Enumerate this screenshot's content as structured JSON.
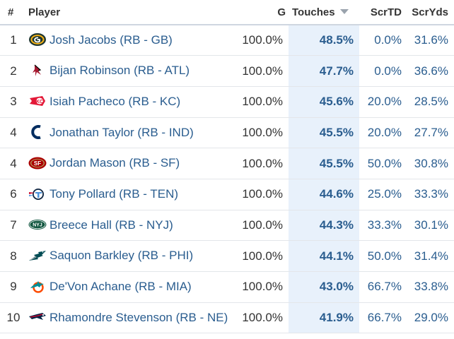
{
  "columns": {
    "rank": "#",
    "player": "Player",
    "g": "G",
    "touches": "Touches",
    "scrtd": "ScrTD",
    "scryds": "ScrYds"
  },
  "rows": [
    {
      "rank": "1",
      "player": "Josh Jacobs (RB - GB)",
      "team_icon": "packers-logo-icon",
      "g": "100.0%",
      "touches": "48.5%",
      "scrtd": "0.0%",
      "scryds": "31.6%"
    },
    {
      "rank": "2",
      "player": "Bijan Robinson (RB - ATL)",
      "team_icon": "falcons-logo-icon",
      "g": "100.0%",
      "touches": "47.7%",
      "scrtd": "0.0%",
      "scryds": "36.6%"
    },
    {
      "rank": "3",
      "player": "Isiah Pacheco (RB - KC)",
      "team_icon": "chiefs-logo-icon",
      "g": "100.0%",
      "touches": "45.6%",
      "scrtd": "20.0%",
      "scryds": "28.5%"
    },
    {
      "rank": "4",
      "player": "Jonathan Taylor (RB - IND)",
      "team_icon": "colts-logo-icon",
      "g": "100.0%",
      "touches": "45.5%",
      "scrtd": "20.0%",
      "scryds": "27.7%"
    },
    {
      "rank": "4",
      "player": "Jordan Mason (RB - SF)",
      "team_icon": "49ers-logo-icon",
      "g": "100.0%",
      "touches": "45.5%",
      "scrtd": "50.0%",
      "scryds": "30.8%"
    },
    {
      "rank": "6",
      "player": "Tony Pollard (RB - TEN)",
      "team_icon": "titans-logo-icon",
      "g": "100.0%",
      "touches": "44.6%",
      "scrtd": "25.0%",
      "scryds": "33.3%"
    },
    {
      "rank": "7",
      "player": "Breece Hall (RB - NYJ)",
      "team_icon": "jets-logo-icon",
      "g": "100.0%",
      "touches": "44.3%",
      "scrtd": "33.3%",
      "scryds": "30.1%"
    },
    {
      "rank": "8",
      "player": "Saquon Barkley (RB - PHI)",
      "team_icon": "eagles-logo-icon",
      "g": "100.0%",
      "touches": "44.1%",
      "scrtd": "50.0%",
      "scryds": "31.4%"
    },
    {
      "rank": "9",
      "player": "De'Von Achane (RB - MIA)",
      "team_icon": "dolphins-logo-icon",
      "g": "100.0%",
      "touches": "43.0%",
      "scrtd": "66.7%",
      "scryds": "33.8%"
    },
    {
      "rank": "10",
      "player": "Rhamondre Stevenson (RB - NE)",
      "team_icon": "patriots-logo-icon",
      "g": "100.0%",
      "touches": "41.9%",
      "scrtd": "66.7%",
      "scryds": "29.0%"
    }
  ],
  "colors": {
    "link": "#2a5d8f",
    "sorted_column_bg": "#e8f1fb",
    "row_border": "#e3e6ea"
  }
}
